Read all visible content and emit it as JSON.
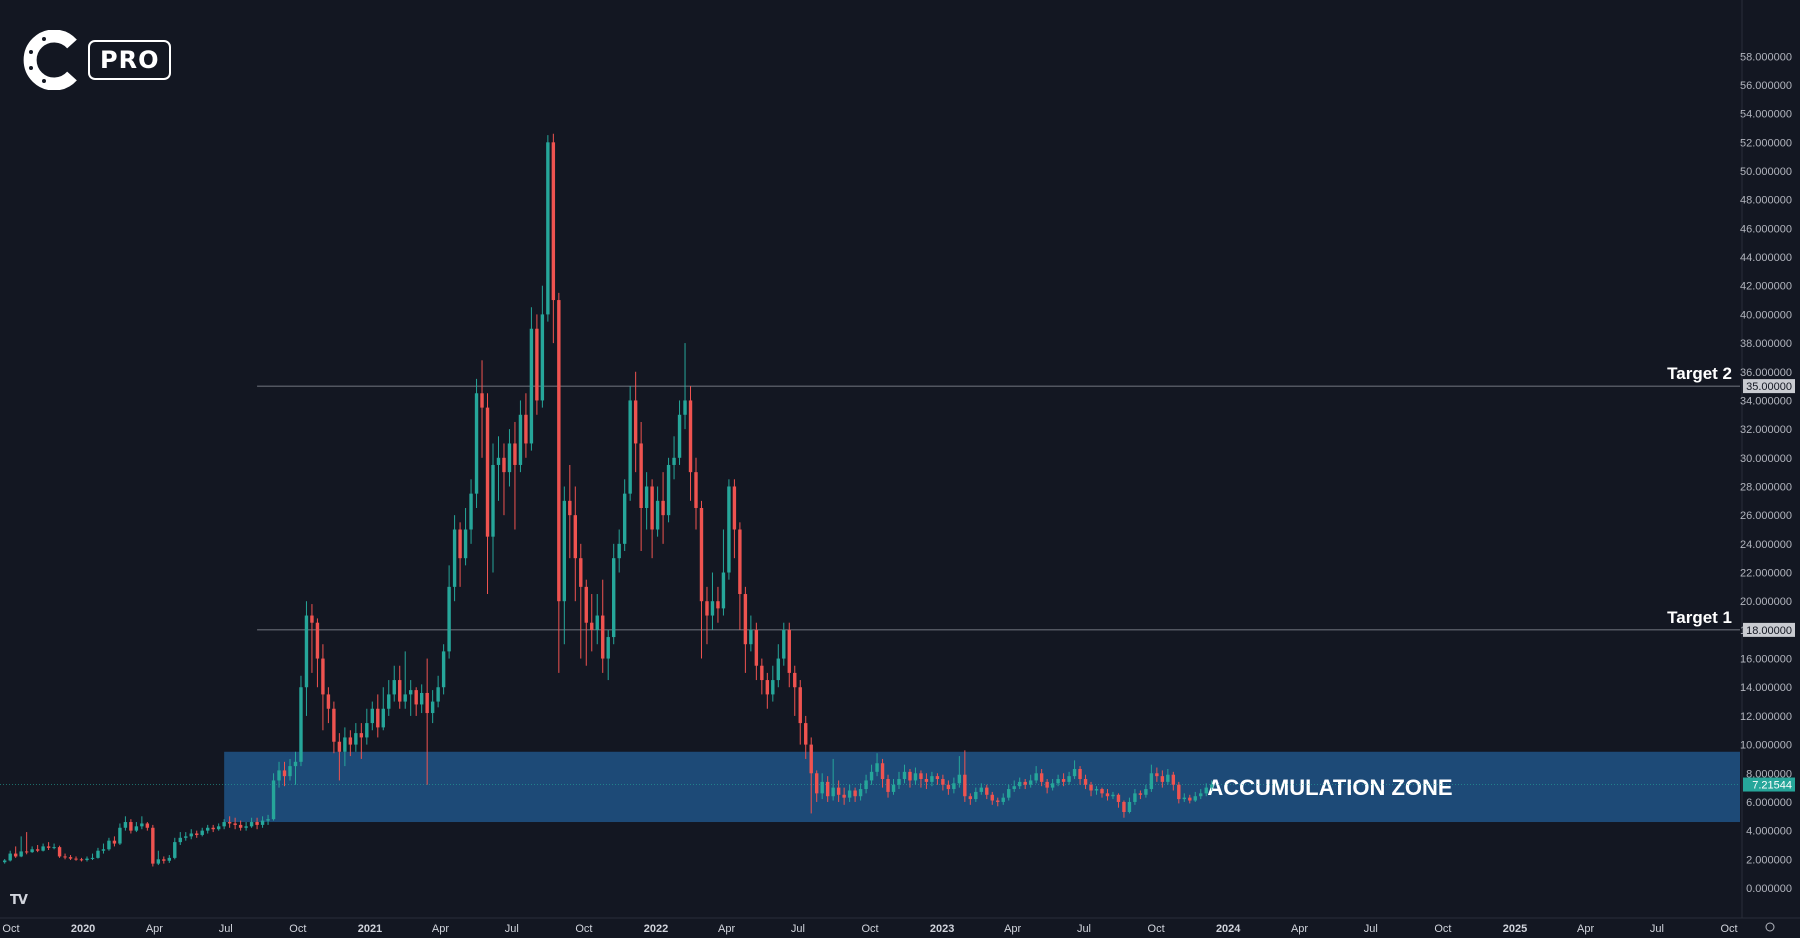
{
  "chart_data": {
    "type": "candlestick",
    "brand": {
      "badge": "PRO",
      "logo_icon": "c-pro-logo-icon",
      "platform_icon": "tradingview-logo-icon",
      "platform_mark": "TV"
    },
    "colors": {
      "up": "#26a69a",
      "down": "#ef5350",
      "zone": "#1f5283",
      "price_label": "#26a69a",
      "level_label": "#c9cbd1"
    },
    "ylim": [
      0,
      62
    ],
    "y_ticks": [
      "0.000000",
      "2.000000",
      "4.000000",
      "6.000000",
      "8.000000",
      "10.000000",
      "12.000000",
      "14.000000",
      "16.000000",
      "18.000000",
      "20.000000",
      "22.000000",
      "24.000000",
      "26.000000",
      "28.000000",
      "30.000000",
      "32.000000",
      "34.000000",
      "36.000000",
      "38.000000",
      "40.000000",
      "42.000000",
      "44.000000",
      "46.000000",
      "48.000000",
      "50.000000",
      "52.000000",
      "54.000000",
      "56.000000",
      "58.000000"
    ],
    "x_range": [
      "2019-09-17",
      "2025-10-15"
    ],
    "x_ticks": [
      {
        "date": "2019-10-01",
        "label": "Oct",
        "major": false
      },
      {
        "date": "2020-01-01",
        "label": "2020",
        "major": true
      },
      {
        "date": "2020-04-01",
        "label": "Apr",
        "major": false
      },
      {
        "date": "2020-07-01",
        "label": "Jul",
        "major": false
      },
      {
        "date": "2020-10-01",
        "label": "Oct",
        "major": false
      },
      {
        "date": "2021-01-01",
        "label": "2021",
        "major": true
      },
      {
        "date": "2021-04-01",
        "label": "Apr",
        "major": false
      },
      {
        "date": "2021-07-01",
        "label": "Jul",
        "major": false
      },
      {
        "date": "2021-10-01",
        "label": "Oct",
        "major": false
      },
      {
        "date": "2022-01-01",
        "label": "2022",
        "major": true
      },
      {
        "date": "2022-04-01",
        "label": "Apr",
        "major": false
      },
      {
        "date": "2022-07-01",
        "label": "Jul",
        "major": false
      },
      {
        "date": "2022-10-01",
        "label": "Oct",
        "major": false
      },
      {
        "date": "2023-01-01",
        "label": "2023",
        "major": true
      },
      {
        "date": "2023-04-01",
        "label": "Apr",
        "major": false
      },
      {
        "date": "2023-07-01",
        "label": "Jul",
        "major": false
      },
      {
        "date": "2023-10-01",
        "label": "Oct",
        "major": false
      },
      {
        "date": "2024-01-01",
        "label": "2024",
        "major": true
      },
      {
        "date": "2024-04-01",
        "label": "Apr",
        "major": false
      },
      {
        "date": "2024-07-01",
        "label": "Jul",
        "major": false
      },
      {
        "date": "2024-10-01",
        "label": "Oct",
        "major": false
      },
      {
        "date": "2025-01-01",
        "label": "2025",
        "major": true
      },
      {
        "date": "2025-04-01",
        "label": "Apr",
        "major": false
      },
      {
        "date": "2025-07-01",
        "label": "Jul",
        "major": false
      },
      {
        "date": "2025-10-01",
        "label": "Oct",
        "major": false
      }
    ],
    "levels": [
      {
        "name": "Target 2",
        "value": 35,
        "label": "35.00000"
      },
      {
        "name": "Target 1",
        "value": 18,
        "label": "18.00000"
      }
    ],
    "zone": {
      "name": "ACCUMULATION ZONE",
      "low": 4.6,
      "high": 9.5,
      "start": "2020-06-29",
      "end": "2025-10-15"
    },
    "current_price": {
      "value": 7.21544,
      "label": "7.21544"
    },
    "candles_weekly_start": "2019-09-23",
    "candles": [
      [
        1.8,
        1.92,
        1.7,
        2.02
      ],
      [
        1.92,
        2.4,
        1.85,
        2.6
      ],
      [
        2.4,
        2.2,
        2.1,
        2.9
      ],
      [
        2.2,
        2.55,
        2.15,
        3.6
      ],
      [
        2.55,
        2.5,
        2.35,
        3.9
      ],
      [
        2.5,
        2.7,
        2.45,
        2.9
      ],
      [
        2.7,
        2.6,
        2.5,
        3.0
      ],
      [
        2.6,
        2.9,
        2.55,
        3.1
      ],
      [
        2.9,
        2.8,
        2.65,
        3.2
      ],
      [
        2.8,
        2.85,
        2.7,
        3.1
      ],
      [
        2.85,
        2.2,
        2.1,
        2.95
      ],
      [
        2.2,
        2.15,
        2.0,
        2.4
      ],
      [
        2.15,
        2.05,
        1.95,
        2.3
      ],
      [
        2.05,
        2.0,
        1.9,
        2.2
      ],
      [
        2.0,
        1.95,
        1.85,
        2.1
      ],
      [
        1.95,
        2.05,
        1.85,
        2.2
      ],
      [
        2.05,
        2.1,
        1.95,
        2.4
      ],
      [
        2.1,
        2.6,
        2.05,
        2.8
      ],
      [
        2.6,
        2.7,
        2.4,
        3.1
      ],
      [
        2.7,
        3.3,
        2.6,
        3.5
      ],
      [
        3.3,
        3.1,
        2.9,
        3.6
      ],
      [
        3.1,
        4.2,
        3.0,
        4.5
      ],
      [
        4.2,
        4.6,
        4.0,
        5.0
      ],
      [
        4.6,
        4.0,
        3.8,
        4.8
      ],
      [
        4.0,
        4.3,
        3.9,
        4.6
      ],
      [
        4.3,
        4.5,
        4.1,
        5.0
      ],
      [
        4.5,
        4.2,
        4.0,
        4.6
      ],
      [
        4.2,
        1.7,
        1.5,
        4.4
      ],
      [
        1.7,
        2.0,
        1.6,
        2.6
      ],
      [
        2.0,
        1.9,
        1.7,
        2.2
      ],
      [
        1.9,
        2.1,
        1.75,
        2.3
      ],
      [
        2.1,
        3.2,
        2.0,
        3.5
      ],
      [
        3.2,
        3.5,
        3.0,
        3.9
      ],
      [
        3.5,
        3.6,
        3.3,
        3.9
      ],
      [
        3.6,
        3.8,
        3.4,
        4.1
      ],
      [
        3.8,
        3.7,
        3.5,
        4.0
      ],
      [
        3.7,
        4.0,
        3.6,
        4.2
      ],
      [
        4.0,
        4.2,
        3.8,
        4.4
      ],
      [
        4.2,
        4.1,
        3.9,
        4.4
      ],
      [
        4.1,
        4.3,
        4.0,
        4.5
      ],
      [
        4.3,
        4.6,
        4.1,
        4.8
      ],
      [
        4.6,
        4.5,
        4.2,
        5.0
      ],
      [
        4.5,
        4.4,
        4.1,
        4.9
      ],
      [
        4.4,
        4.2,
        4.0,
        4.7
      ],
      [
        4.2,
        4.3,
        4.0,
        4.6
      ],
      [
        4.3,
        4.6,
        4.2,
        4.9
      ],
      [
        4.6,
        4.4,
        4.1,
        4.9
      ],
      [
        4.4,
        4.7,
        4.2,
        5.0
      ],
      [
        4.7,
        4.8,
        4.4,
        5.1
      ],
      [
        4.8,
        7.5,
        4.7,
        8.0
      ],
      [
        7.5,
        8.2,
        7.0,
        8.8
      ],
      [
        8.2,
        7.8,
        7.1,
        8.8
      ],
      [
        7.8,
        8.5,
        7.5,
        9.0
      ],
      [
        8.5,
        8.8,
        7.2,
        9.5
      ],
      [
        8.8,
        14.0,
        8.5,
        14.8
      ],
      [
        14.0,
        19.0,
        12.0,
        20.0
      ],
      [
        19.0,
        18.5,
        15.0,
        19.8
      ],
      [
        18.5,
        16.0,
        14.0,
        18.8
      ],
      [
        16.0,
        13.5,
        11.0,
        17.0
      ],
      [
        13.5,
        12.5,
        11.5,
        14.0
      ],
      [
        12.5,
        10.2,
        9.4,
        13.0
      ],
      [
        10.2,
        9.5,
        7.5,
        10.8
      ],
      [
        9.5,
        10.5,
        8.5,
        11.2
      ],
      [
        10.5,
        10.0,
        9.2,
        11.0
      ],
      [
        10.0,
        10.8,
        9.5,
        11.5
      ],
      [
        10.8,
        10.5,
        9.0,
        11.5
      ],
      [
        10.5,
        11.5,
        10.0,
        12.5
      ],
      [
        11.5,
        12.5,
        11.0,
        13.0
      ],
      [
        12.5,
        11.2,
        10.5,
        13.5
      ],
      [
        11.2,
        12.5,
        11.0,
        14.0
      ],
      [
        12.5,
        13.5,
        12.0,
        14.5
      ],
      [
        13.5,
        14.5,
        13.0,
        15.5
      ],
      [
        14.5,
        13.0,
        12.5,
        15.5
      ],
      [
        13.0,
        13.5,
        12.5,
        16.5
      ],
      [
        13.5,
        13.8,
        12.0,
        14.5
      ],
      [
        13.8,
        12.8,
        12.0,
        14.0
      ],
      [
        12.8,
        13.6,
        12.2,
        14.2
      ],
      [
        13.6,
        12.2,
        7.2,
        16.0
      ],
      [
        12.2,
        13.0,
        11.5,
        13.8
      ],
      [
        13.0,
        14.0,
        12.6,
        14.8
      ],
      [
        14.0,
        16.5,
        13.5,
        17.0
      ],
      [
        16.5,
        21.0,
        16.0,
        22.5
      ],
      [
        21.0,
        25.0,
        20.0,
        26.0
      ],
      [
        25.0,
        23.0,
        21.0,
        25.5
      ],
      [
        23.0,
        25.0,
        22.5,
        26.5
      ],
      [
        25.0,
        27.5,
        24.0,
        28.5
      ],
      [
        27.5,
        34.5,
        26.5,
        35.5
      ],
      [
        34.5,
        33.5,
        30.0,
        36.8
      ],
      [
        33.5,
        24.5,
        20.5,
        34.5
      ],
      [
        24.5,
        29.5,
        22.0,
        31.0
      ],
      [
        29.5,
        30.0,
        27.0,
        31.5
      ],
      [
        30.0,
        29.0,
        26.0,
        31.0
      ],
      [
        29.0,
        31.0,
        28.0,
        32.0
      ],
      [
        31.0,
        29.5,
        25.0,
        32.5
      ],
      [
        29.5,
        33.0,
        29.0,
        34.0
      ],
      [
        33.0,
        31.0,
        30.0,
        34.5
      ],
      [
        31.0,
        39.0,
        30.5,
        40.5
      ],
      [
        39.0,
        34.0,
        33.0,
        40.0
      ],
      [
        34.0,
        40.0,
        33.5,
        42.0
      ],
      [
        40.0,
        52.0,
        39.5,
        52.5
      ],
      [
        52.0,
        41.0,
        38.0,
        52.6
      ],
      [
        41.0,
        20.0,
        15.0,
        41.5
      ],
      [
        20.0,
        27.0,
        17.0,
        28.0
      ],
      [
        27.0,
        26.0,
        23.0,
        29.5
      ],
      [
        26.0,
        23.0,
        20.0,
        28.0
      ],
      [
        23.0,
        21.0,
        16.0,
        24.0
      ],
      [
        21.0,
        18.5,
        15.5,
        21.5
      ],
      [
        18.5,
        18.0,
        16.5,
        20.5
      ],
      [
        18.0,
        19.0,
        17.0,
        20.5
      ],
      [
        19.0,
        16.0,
        15.0,
        21.5
      ],
      [
        16.0,
        17.5,
        14.5,
        18.0
      ],
      [
        17.5,
        23.0,
        17.0,
        24.0
      ],
      [
        23.0,
        24.0,
        22.0,
        25.0
      ],
      [
        24.0,
        27.5,
        23.5,
        28.5
      ],
      [
        27.5,
        34.0,
        27.0,
        35.0
      ],
      [
        34.0,
        31.0,
        29.0,
        36.0
      ],
      [
        31.0,
        26.5,
        23.5,
        32.5
      ],
      [
        26.5,
        28.0,
        25.0,
        29.0
      ],
      [
        28.0,
        25.0,
        23.0,
        28.5
      ],
      [
        25.0,
        27.0,
        24.5,
        28.0
      ],
      [
        27.0,
        26.0,
        24.0,
        29.0
      ],
      [
        26.0,
        29.5,
        25.5,
        30.0
      ],
      [
        29.5,
        30.0,
        28.5,
        31.5
      ],
      [
        30.0,
        33.0,
        29.5,
        34.0
      ],
      [
        33.0,
        34.0,
        32.0,
        38.0
      ],
      [
        34.0,
        29.0,
        27.0,
        35.0
      ],
      [
        29.0,
        26.5,
        25.0,
        30.0
      ],
      [
        26.5,
        20.0,
        16.0,
        27.0
      ],
      [
        20.0,
        19.0,
        17.0,
        21.0
      ],
      [
        19.0,
        20.0,
        18.0,
        22.0
      ],
      [
        20.0,
        19.5,
        18.5,
        21.0
      ],
      [
        19.5,
        22.0,
        19.0,
        25.0
      ],
      [
        22.0,
        28.0,
        21.5,
        28.5
      ],
      [
        28.0,
        25.0,
        23.0,
        28.5
      ],
      [
        25.0,
        20.5,
        18.0,
        25.5
      ],
      [
        20.5,
        17.0,
        15.0,
        21.0
      ],
      [
        17.0,
        18.0,
        16.5,
        19.0
      ],
      [
        18.0,
        15.5,
        14.5,
        18.5
      ],
      [
        15.5,
        14.5,
        13.5,
        16.0
      ],
      [
        14.5,
        13.5,
        12.5,
        15.0
      ],
      [
        13.5,
        14.5,
        13.0,
        15.5
      ],
      [
        14.5,
        16.0,
        14.0,
        17.0
      ],
      [
        16.0,
        18.0,
        15.5,
        18.5
      ],
      [
        18.0,
        15.0,
        14.0,
        18.5
      ],
      [
        15.0,
        14.0,
        12.0,
        15.5
      ],
      [
        14.0,
        11.5,
        10.0,
        14.5
      ],
      [
        11.5,
        10.0,
        9.0,
        12.0
      ],
      [
        10.0,
        8.0,
        5.2,
        10.5
      ],
      [
        8.0,
        6.6,
        6.0,
        8.2
      ],
      [
        6.6,
        7.4,
        6.2,
        8.0
      ],
      [
        7.4,
        6.4,
        6.0,
        7.8
      ],
      [
        6.4,
        7.0,
        6.1,
        9.0
      ],
      [
        7.0,
        6.5,
        6.0,
        7.5
      ],
      [
        6.5,
        6.3,
        5.8,
        7.0
      ],
      [
        6.3,
        6.8,
        6.0,
        7.2
      ],
      [
        6.8,
        6.4,
        6.0,
        7.0
      ],
      [
        6.4,
        6.9,
        6.1,
        7.3
      ],
      [
        6.9,
        7.5,
        6.6,
        7.9
      ],
      [
        7.5,
        8.1,
        7.2,
        8.6
      ],
      [
        8.1,
        8.7,
        7.8,
        9.4
      ],
      [
        8.7,
        7.6,
        7.0,
        9.0
      ],
      [
        7.6,
        6.7,
        6.3,
        7.9
      ],
      [
        6.7,
        7.2,
        6.5,
        7.6
      ],
      [
        7.2,
        7.6,
        6.9,
        8.1
      ],
      [
        7.6,
        8.1,
        7.3,
        8.6
      ],
      [
        8.1,
        7.5,
        7.0,
        8.3
      ],
      [
        7.5,
        8.0,
        7.2,
        8.4
      ],
      [
        8.0,
        7.6,
        7.0,
        8.2
      ],
      [
        7.6,
        7.4,
        6.9,
        8.0
      ],
      [
        7.4,
        7.8,
        7.1,
        8.1
      ],
      [
        7.8,
        7.6,
        7.2,
        8.0
      ],
      [
        7.6,
        7.2,
        6.8,
        7.9
      ],
      [
        7.2,
        6.9,
        6.5,
        7.5
      ],
      [
        6.9,
        7.3,
        6.6,
        7.7
      ],
      [
        7.3,
        7.9,
        7.0,
        9.2
      ],
      [
        7.9,
        6.4,
        6.0,
        9.6
      ],
      [
        6.4,
        6.2,
        5.8,
        6.6
      ],
      [
        6.2,
        6.7,
        6.0,
        7.0
      ],
      [
        6.7,
        7.0,
        6.5,
        7.3
      ],
      [
        7.0,
        6.5,
        6.2,
        7.2
      ],
      [
        6.5,
        6.1,
        5.8,
        6.7
      ],
      [
        6.1,
        6.0,
        5.7,
        6.3
      ],
      [
        6.0,
        6.3,
        5.8,
        6.6
      ],
      [
        6.3,
        6.9,
        6.1,
        7.2
      ],
      [
        6.9,
        7.1,
        6.7,
        7.5
      ],
      [
        7.1,
        7.4,
        6.9,
        7.7
      ],
      [
        7.4,
        7.2,
        6.9,
        7.6
      ],
      [
        7.2,
        7.5,
        7.0,
        7.9
      ],
      [
        7.5,
        8.0,
        7.3,
        8.5
      ],
      [
        8.0,
        7.4,
        7.1,
        8.3
      ],
      [
        7.4,
        7.0,
        6.6,
        7.6
      ],
      [
        7.0,
        7.3,
        6.8,
        7.6
      ],
      [
        7.3,
        7.6,
        7.1,
        7.9
      ],
      [
        7.6,
        7.4,
        7.1,
        8.0
      ],
      [
        7.4,
        7.8,
        7.2,
        8.1
      ],
      [
        7.8,
        8.3,
        7.6,
        8.9
      ],
      [
        8.3,
        7.6,
        7.2,
        8.5
      ],
      [
        7.6,
        7.2,
        6.9,
        7.9
      ],
      [
        7.2,
        6.8,
        6.4,
        7.4
      ],
      [
        6.8,
        6.9,
        6.5,
        7.1
      ],
      [
        6.9,
        6.6,
        6.3,
        7.0
      ],
      [
        6.6,
        6.4,
        6.1,
        6.9
      ],
      [
        6.4,
        6.5,
        6.2,
        6.7
      ],
      [
        6.5,
        6.0,
        5.6,
        6.6
      ],
      [
        6.0,
        5.3,
        4.9,
        6.1
      ],
      [
        5.3,
        6.0,
        5.2,
        6.3
      ],
      [
        6.0,
        6.6,
        5.8,
        6.9
      ],
      [
        6.6,
        6.5,
        6.2,
        6.8
      ],
      [
        6.5,
        6.9,
        6.3,
        7.2
      ],
      [
        6.9,
        8.0,
        6.7,
        8.6
      ],
      [
        8.0,
        7.8,
        7.4,
        8.4
      ],
      [
        7.8,
        7.4,
        7.0,
        8.2
      ],
      [
        7.4,
        7.9,
        7.2,
        8.3
      ],
      [
        7.9,
        7.2,
        6.8,
        8.1
      ],
      [
        7.2,
        6.2,
        5.9,
        7.4
      ],
      [
        6.2,
        6.3,
        6.0,
        6.6
      ],
      [
        6.3,
        6.1,
        5.9,
        6.5
      ],
      [
        6.1,
        6.4,
        6.0,
        6.7
      ],
      [
        6.4,
        6.6,
        6.2,
        6.9
      ],
      [
        6.6,
        7.0,
        6.4,
        7.3
      ],
      [
        7.0,
        7.22,
        6.8,
        7.5
      ]
    ]
  }
}
